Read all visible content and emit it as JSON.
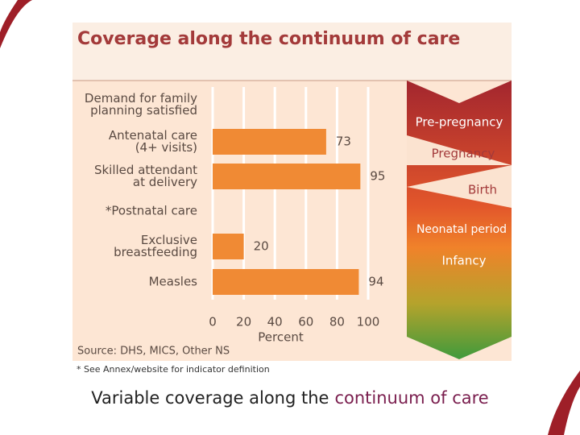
{
  "chart_data": {
    "type": "bar",
    "orientation": "horizontal",
    "title": "Coverage along the continuum of care",
    "categories": [
      "Demand for family\nplanning satisfied",
      "Antenatal care\n(4+ visits)",
      "Skilled attendant\nat delivery",
      "*Postnatal care",
      "Exclusive\nbreastfeeding",
      "Measles"
    ],
    "values": [
      null,
      73,
      95,
      null,
      20,
      94
    ],
    "color": "#f08a34",
    "xlim": [
      0,
      100
    ],
    "xticks": [
      0,
      20,
      40,
      60,
      80,
      100
    ],
    "xlabel": "Percent",
    "grid": true,
    "stages": [
      "Pre-pregnancy",
      "Pregnancy",
      "Birth",
      "Neonatal period",
      "Infancy"
    ],
    "source": "Source: DHS, MICS, Other NS",
    "footnote": "* See Annex/website for indicator definition"
  },
  "slide": {
    "caption": "Variable coverage along the",
    "caption_highlight": "continuum of care"
  }
}
